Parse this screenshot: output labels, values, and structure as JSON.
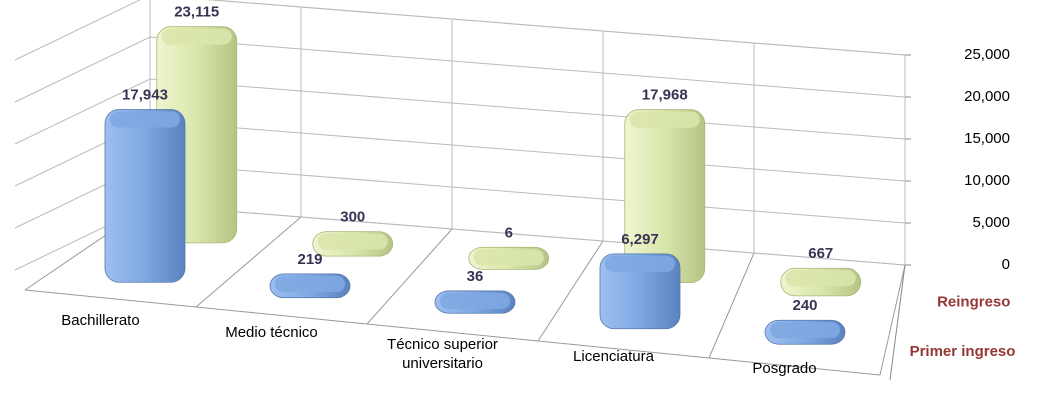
{
  "chart_data": {
    "type": "bar3d",
    "categories": [
      "Bachillerato",
      "Medio técnico",
      "Técnico superior universitario",
      "Licenciatura",
      "Posgrado"
    ],
    "series": [
      {
        "name": "Primer ingreso",
        "color": "#7fa8e2",
        "values": [
          17943,
          219,
          36,
          6297,
          240
        ],
        "value_labels": [
          "17,943",
          "219",
          "36",
          "6,297",
          "240"
        ]
      },
      {
        "name": "Reingreso",
        "color": "#d9e6ab",
        "values": [
          23115,
          300,
          6,
          17968,
          667
        ],
        "value_labels": [
          "23,115",
          "300",
          "6",
          "17,968",
          "667"
        ]
      }
    ],
    "ylim": [
      0,
      25000
    ],
    "yticks": [
      0,
      {
        "value": 5000,
        "label": "5,000"
      },
      {
        "value": 10000,
        "label": "10,000"
      },
      {
        "value": 15000,
        "label": "15,000"
      },
      {
        "value": 20000,
        "label": "20,000"
      },
      {
        "value": 25000,
        "label": "25,000"
      }
    ],
    "grid": true
  }
}
